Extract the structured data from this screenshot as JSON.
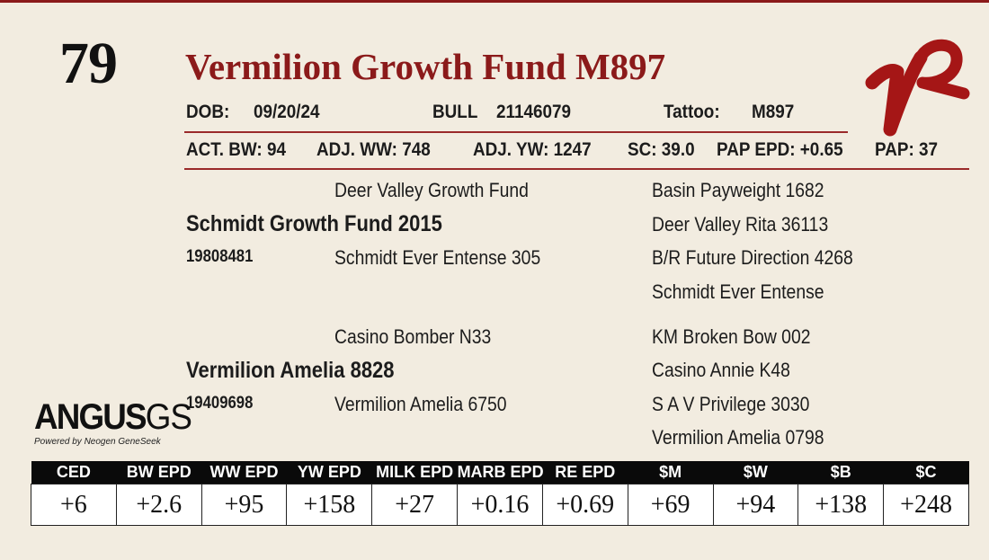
{
  "lot_number": "79",
  "title": "Vermilion Growth Fund M897",
  "brand_logo_text": "VR",
  "info": {
    "dob_label": "DOB:",
    "dob": "09/20/24",
    "sex": "BULL",
    "registration": "21146079",
    "tattoo_label": "Tattoo:",
    "tattoo": "M897"
  },
  "stats": {
    "act_bw": "ACT. BW: 94",
    "adj_ww": "ADJ. WW: 748",
    "adj_yw": "ADJ. YW: 1247",
    "sc": "SC: 39.0",
    "pap_epd": "PAP EPD: +0.65",
    "pap": "PAP: 37"
  },
  "pedigree": {
    "sire": {
      "name": "Schmidt Growth Fund 2015",
      "reg": "19808481",
      "sire": "Deer Valley Growth Fund",
      "dam": "Schmidt Ever Entense 305",
      "ggp": [
        "Basin Payweight 1682",
        "Deer Valley Rita 36113",
        "B/R Future Direction 4268",
        "Schmidt Ever Entense"
      ]
    },
    "dam": {
      "name": "Vermilion Amelia 8828",
      "reg": "19409698",
      "sire": "Casino Bomber N33",
      "dam": "Vermilion Amelia 6750",
      "ggp": [
        "KM Broken Bow 002",
        "Casino Annie K48",
        "S A V Privilege 3030",
        "Vermilion Amelia 0798"
      ]
    }
  },
  "angus_logo": {
    "main": "ANGUS",
    "suffix": "GS",
    "tagline": "Powered by Neogen GeneSeek"
  },
  "epd": {
    "headers": [
      "CED",
      "BW EPD",
      "WW EPD",
      "YW EPD",
      "MILK EPD",
      "MARB EPD",
      "RE EPD",
      "$M",
      "$W",
      "$B",
      "$C"
    ],
    "values": [
      "+6",
      "+2.6",
      "+95",
      "+158",
      "+27",
      "+0.16",
      "+0.69",
      "+69",
      "+94",
      "+138",
      "+248"
    ]
  },
  "colors": {
    "accent": "#8b1a1a",
    "background": "#f2ece0"
  }
}
